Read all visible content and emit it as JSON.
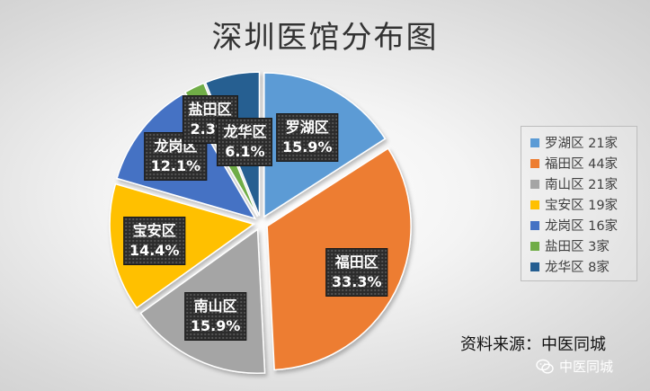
{
  "chart_data": {
    "type": "pie",
    "title": "深圳医馆分布图",
    "slices": [
      {
        "name": "罗湖区",
        "count_label": "21家",
        "count": 21,
        "percent_label": "15.9%",
        "percent": 15.9,
        "color": "#5B9BD5"
      },
      {
        "name": "福田区",
        "count_label": "44家",
        "count": 44,
        "percent_label": "33.3%",
        "percent": 33.3,
        "color": "#ED7D31"
      },
      {
        "name": "南山区",
        "count_label": "21家",
        "count": 21,
        "percent_label": "15.9%",
        "percent": 15.9,
        "color": "#A5A5A5"
      },
      {
        "name": "宝安区",
        "count_label": "19家",
        "count": 19,
        "percent_label": "14.4%",
        "percent": 14.4,
        "color": "#FFC000"
      },
      {
        "name": "龙岗区",
        "count_label": "16家",
        "count": 16,
        "percent_label": "12.1%",
        "percent": 12.1,
        "color": "#4472C4"
      },
      {
        "name": "盐田区",
        "count_label": "3家",
        "count": 3,
        "percent_label": "2.3%",
        "percent": 2.3,
        "color": "#70AD47"
      },
      {
        "name": "龙华区",
        "count_label": "8家",
        "count": 8,
        "percent_label": "6.1%",
        "percent": 6.1,
        "color": "#255E91"
      }
    ],
    "exploded": true,
    "legend_position": "right"
  },
  "source_note": "资料来源：中医同城",
  "watermark": {
    "text": "中医同城",
    "icon": "wechat-icon"
  }
}
